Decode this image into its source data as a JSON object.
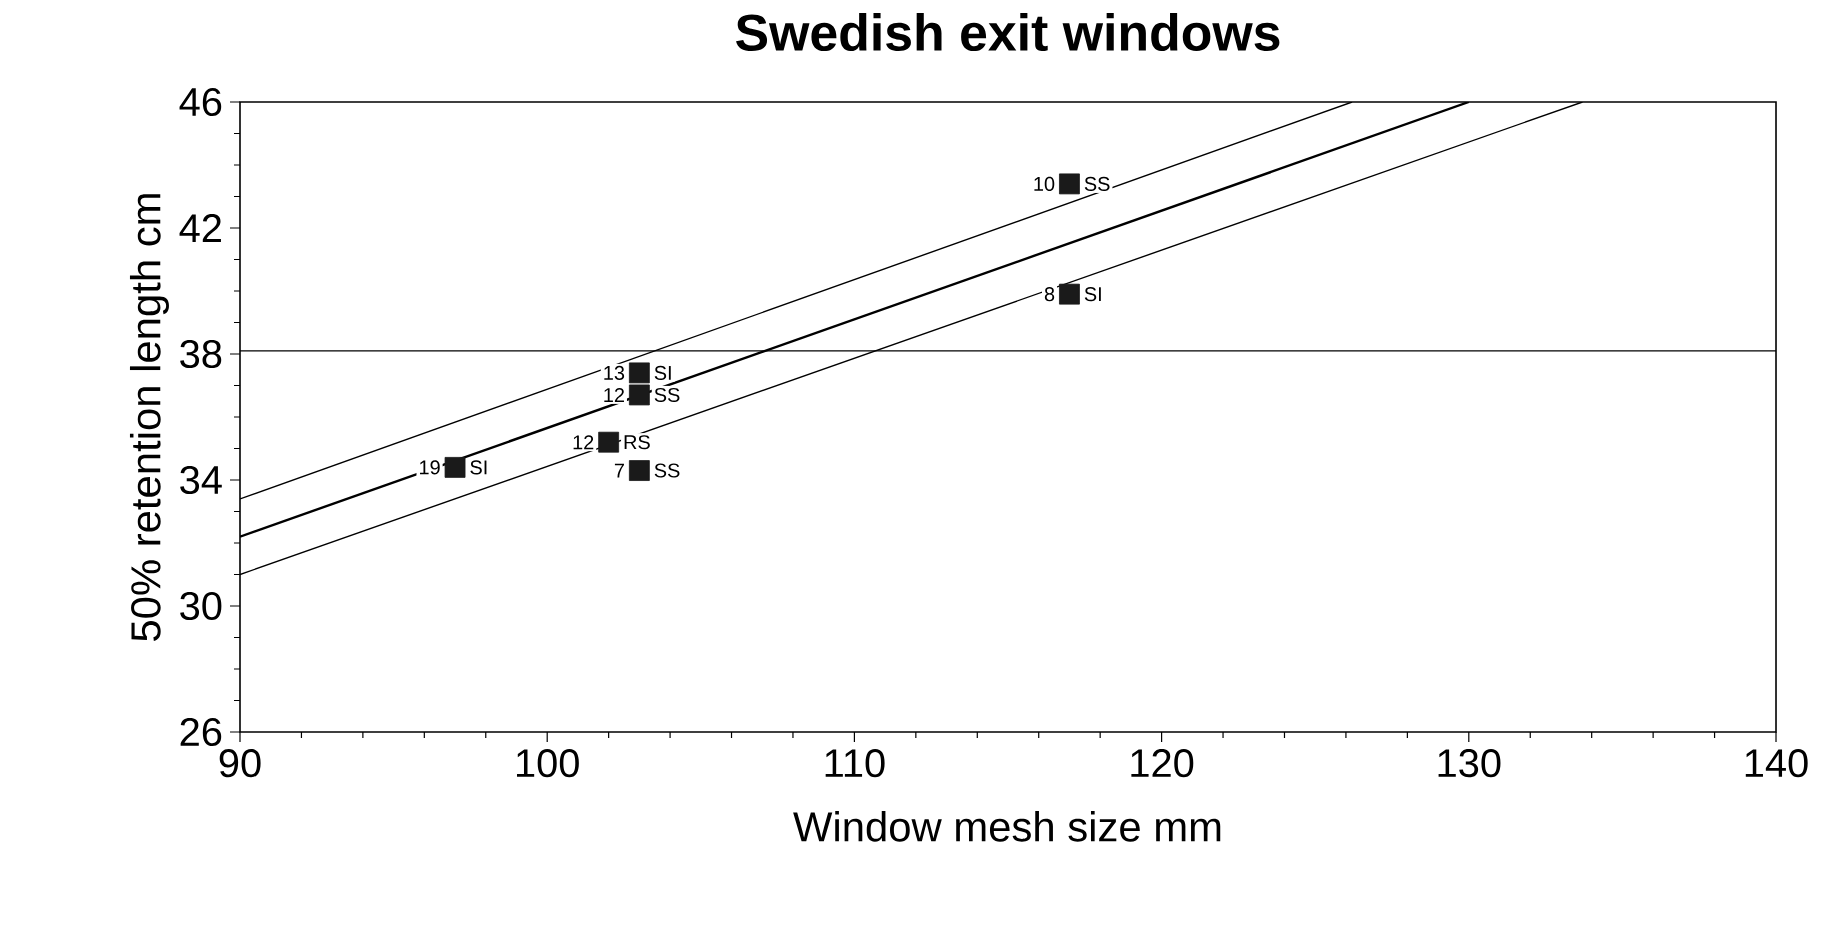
{
  "chart_data": {
    "type": "scatter",
    "title": "Swedish exit windows",
    "xlabel": "Window mesh size mm",
    "ylabel": "50% retention length cm",
    "xlim": [
      90,
      140
    ],
    "xticks": [
      90,
      100,
      110,
      120,
      130,
      140
    ],
    "ylim": [
      26,
      46
    ],
    "yticks": [
      26,
      30,
      34,
      38,
      42,
      46
    ],
    "grid": false,
    "series": [
      {
        "marker": "square",
        "color": "#1a1a1a",
        "x": [
          97,
          102,
          103,
          103,
          103,
          117,
          117
        ],
        "values": [
          34.4,
          35.2,
          37.4,
          36.7,
          34.3,
          43.4,
          39.9
        ]
      },
      {
        "type": "line",
        "color": "#000000",
        "line_style": "solid",
        "x": [
          90,
          126.2
        ],
        "values": [
          33.4,
          46
        ]
      },
      {
        "type": "line",
        "color": "#000000",
        "line_style": "solid",
        "x": [
          90,
          130
        ],
        "values": [
          32.2,
          46
        ]
      },
      {
        "type": "line",
        "color": "#000000",
        "line_style": "solid",
        "x": [
          90,
          133.7
        ],
        "values": [
          31.0,
          46
        ]
      }
    ],
    "ref_lines": [
      {
        "axis": "y",
        "value": 38.1,
        "color": "#000000",
        "line_style": "solid"
      }
    ],
    "annotations": [
      {
        "text": "19",
        "x": 97,
        "y": 34.4
      },
      {
        "text": "SI",
        "x": 97,
        "y": 34.4
      },
      {
        "text": "12",
        "x": 102,
        "y": 35.2
      },
      {
        "text": "RS",
        "x": 102,
        "y": 35.2
      },
      {
        "text": "13",
        "x": 103,
        "y": 37.4
      },
      {
        "text": "SI",
        "x": 103,
        "y": 37.4
      },
      {
        "text": "12",
        "x": 103,
        "y": 36.7
      },
      {
        "text": "SS",
        "x": 103,
        "y": 36.7
      },
      {
        "text": "7",
        "x": 103,
        "y": 34.3
      },
      {
        "text": "SS",
        "x": 103,
        "y": 34.3
      },
      {
        "text": "10",
        "x": 117,
        "y": 43.4
      },
      {
        "text": "SS",
        "x": 117,
        "y": 43.4
      },
      {
        "text": "8",
        "x": 117,
        "y": 39.9
      },
      {
        "text": "SI",
        "x": 117,
        "y": 39.9
      }
    ]
  }
}
